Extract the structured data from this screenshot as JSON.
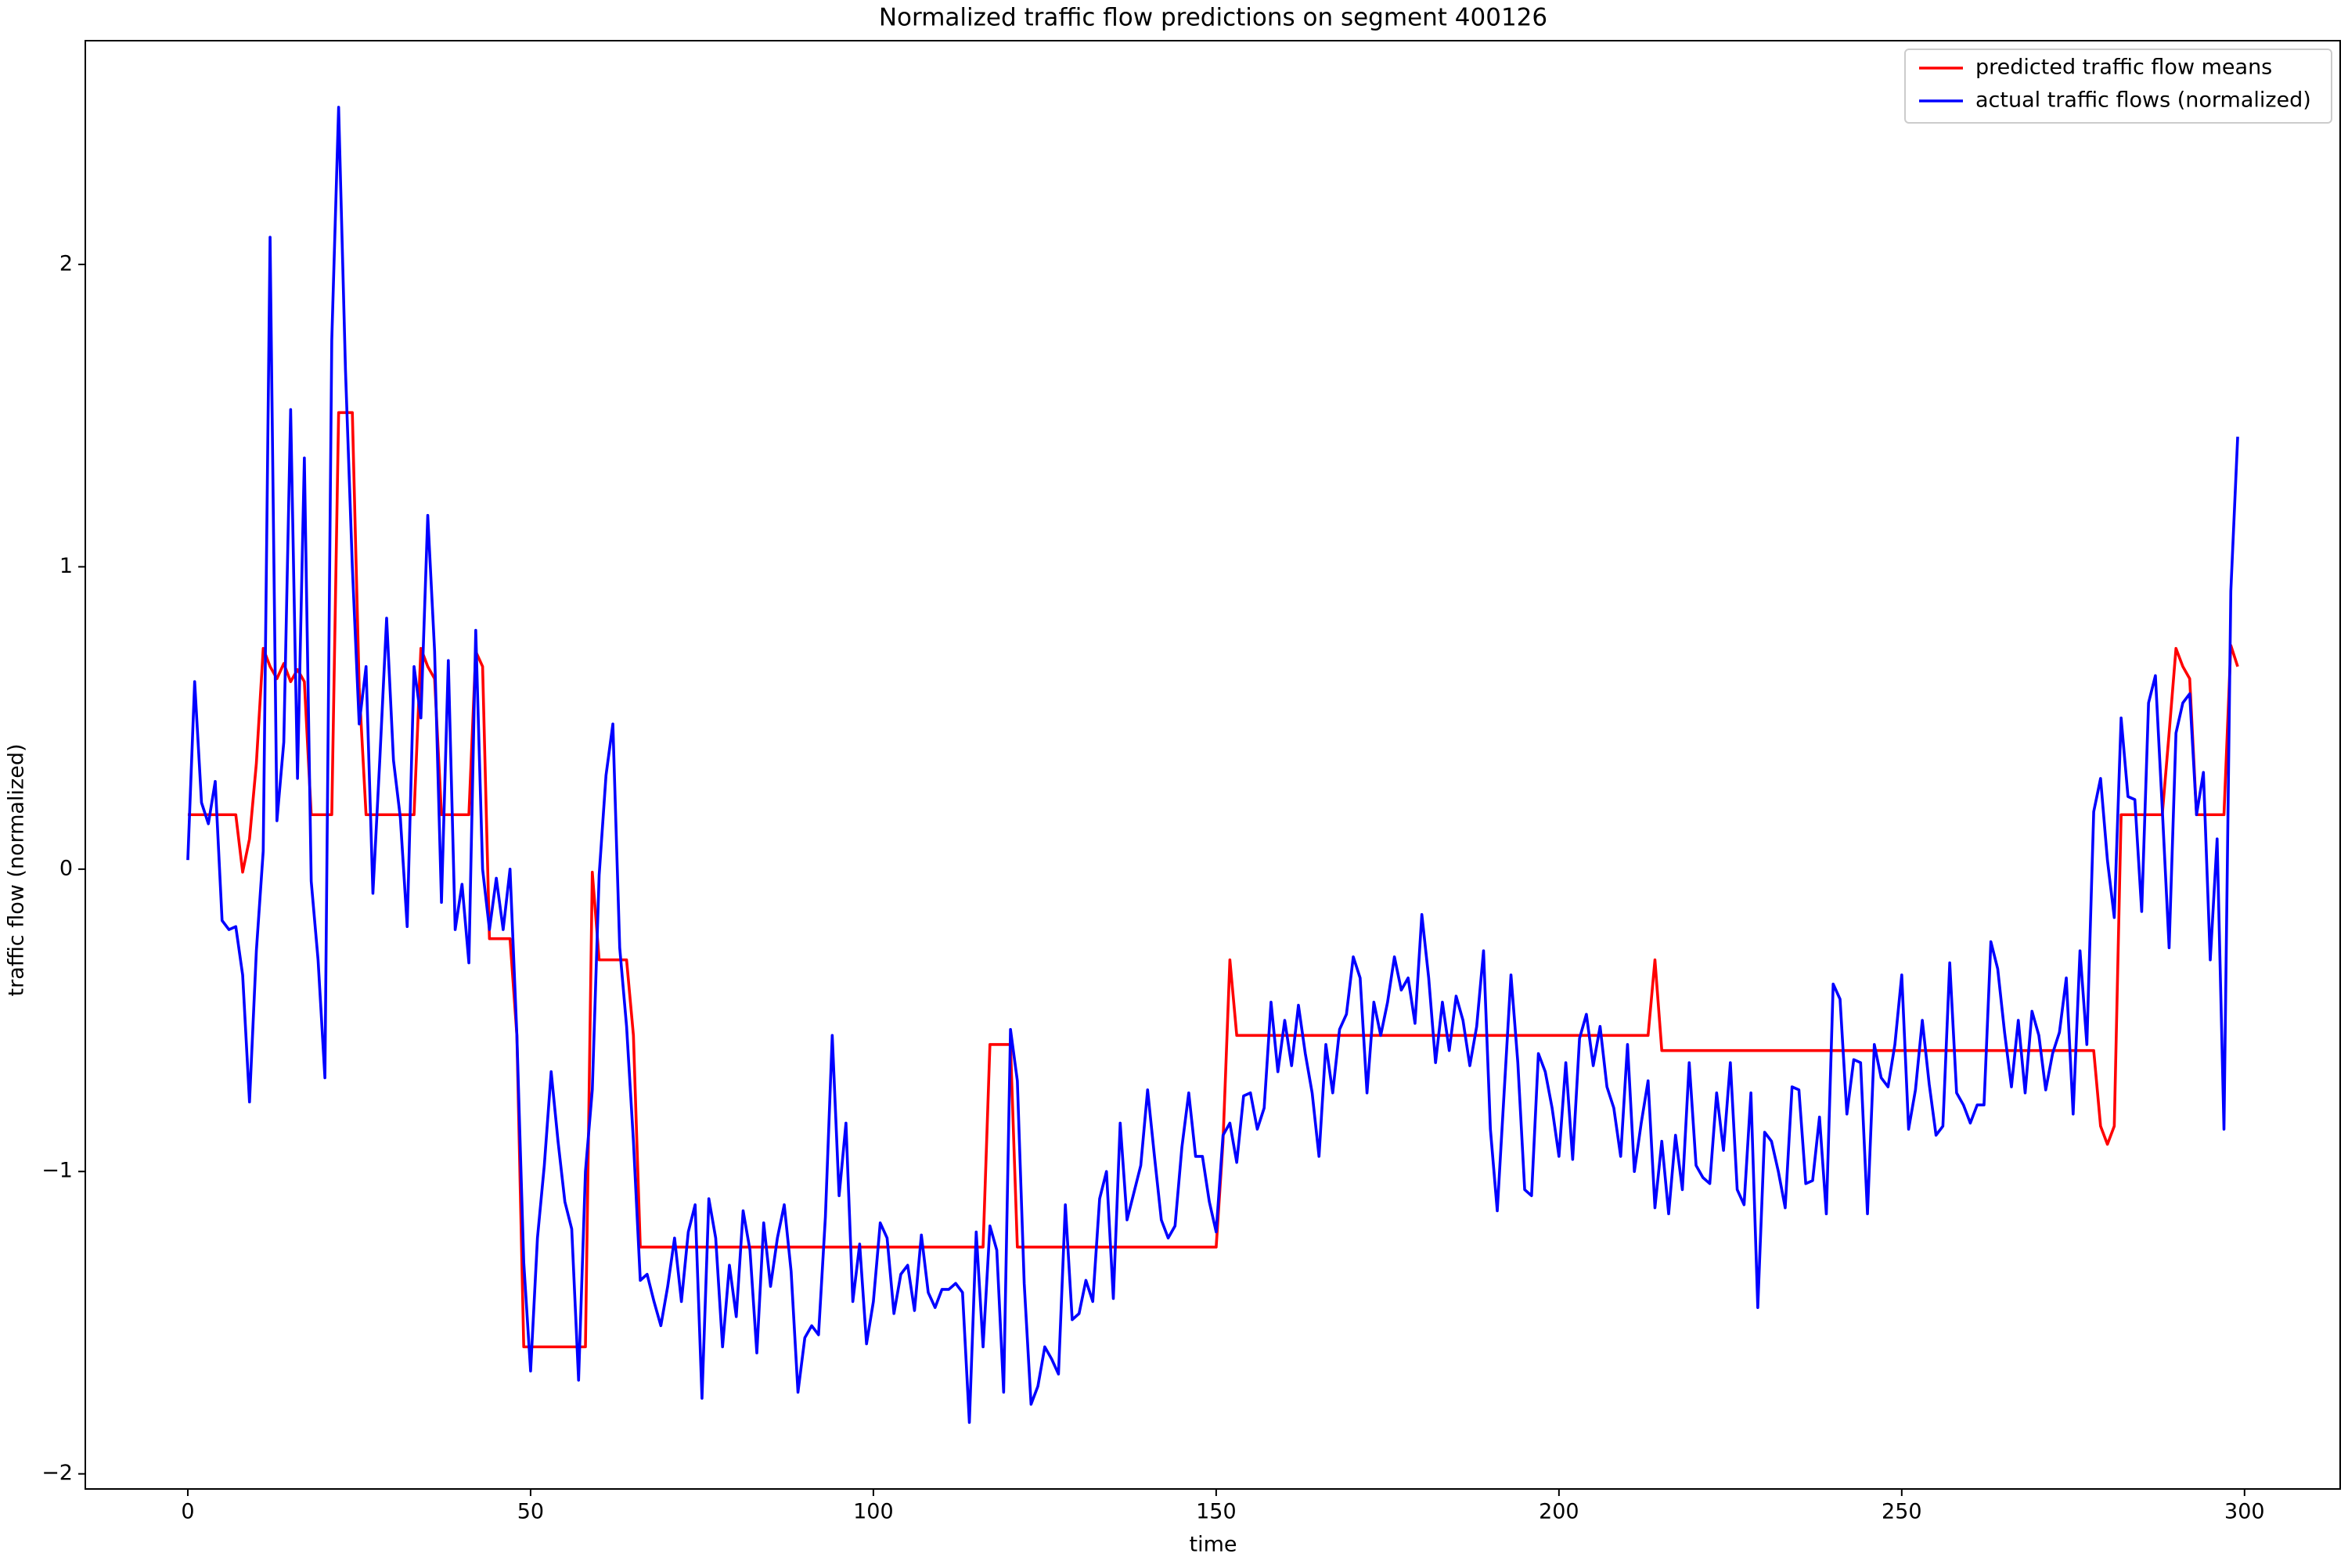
{
  "chart_data": {
    "type": "line",
    "title": "Normalized traffic flow predictions on segment 400126",
    "x_label": "time",
    "y_label": "traffic flow (normalized)",
    "x": [
      0,
      1,
      2,
      3,
      4,
      5,
      6,
      7,
      8,
      9,
      10,
      11,
      12,
      13,
      14,
      15,
      16,
      17,
      18,
      19,
      20,
      21,
      22,
      23,
      24,
      25,
      26,
      27,
      28,
      29,
      30,
      31,
      32,
      33,
      34,
      35,
      36,
      37,
      38,
      39,
      40,
      41,
      42,
      43,
      44,
      45,
      46,
      47,
      48,
      49,
      50,
      51,
      52,
      53,
      54,
      55,
      56,
      57,
      58,
      59,
      60,
      61,
      62,
      63,
      64,
      65,
      66,
      67,
      68,
      69,
      70,
      71,
      72,
      73,
      74,
      75,
      76,
      77,
      78,
      79,
      80,
      81,
      82,
      83,
      84,
      85,
      86,
      87,
      88,
      89,
      90,
      91,
      92,
      93,
      94,
      95,
      96,
      97,
      98,
      99,
      100,
      101,
      102,
      103,
      104,
      105,
      106,
      107,
      108,
      109,
      110,
      111,
      112,
      113,
      114,
      115,
      116,
      117,
      118,
      119,
      120,
      121,
      122,
      123,
      124,
      125,
      126,
      127,
      128,
      129,
      130,
      131,
      132,
      133,
      134,
      135,
      136,
      137,
      138,
      139,
      140,
      141,
      142,
      143,
      144,
      145,
      146,
      147,
      148,
      149,
      150,
      151,
      152,
      153,
      154,
      155,
      156,
      157,
      158,
      159,
      160,
      161,
      162,
      163,
      164,
      165,
      166,
      167,
      168,
      169,
      170,
      171,
      172,
      173,
      174,
      175,
      176,
      177,
      178,
      179,
      180,
      181,
      182,
      183,
      184,
      185,
      186,
      187,
      188,
      189,
      190,
      191,
      192,
      193,
      194,
      195,
      196,
      197,
      198,
      199,
      200,
      201,
      202,
      203,
      204,
      205,
      206,
      207,
      208,
      209,
      210,
      211,
      212,
      213,
      214,
      215,
      216,
      217,
      218,
      219,
      220,
      221,
      222,
      223,
      224,
      225,
      226,
      227,
      228,
      229,
      230,
      231,
      232,
      233,
      234,
      235,
      236,
      237,
      238,
      239,
      240,
      241,
      242,
      243,
      244,
      245,
      246,
      247,
      248,
      249,
      250,
      251,
      252,
      253,
      254,
      255,
      256,
      257,
      258,
      259,
      260,
      261,
      262,
      263,
      264,
      265,
      266,
      267,
      268,
      269,
      270,
      271,
      272,
      273,
      274,
      275,
      276,
      277,
      278,
      279,
      280,
      281,
      282,
      283,
      284,
      285,
      286,
      287,
      288,
      289,
      290,
      291,
      292,
      293,
      294,
      295,
      296,
      297,
      298,
      299
    ],
    "series": [
      {
        "name": "predicted traffic flow means",
        "color": "#ff0000",
        "values": [
          0.18,
          0.18,
          0.18,
          0.18,
          0.18,
          0.18,
          0.18,
          0.18,
          -0.01,
          0.1,
          0.35,
          0.73,
          0.67,
          0.63,
          0.68,
          0.62,
          0.66,
          0.62,
          0.18,
          0.18,
          0.18,
          0.18,
          1.51,
          1.51,
          1.51,
          0.6,
          0.18,
          0.18,
          0.18,
          0.18,
          0.18,
          0.18,
          0.18,
          0.18,
          0.73,
          0.67,
          0.63,
          0.18,
          0.18,
          0.18,
          0.18,
          0.18,
          0.72,
          0.67,
          -0.23,
          -0.23,
          -0.23,
          -0.23,
          -0.55,
          -1.58,
          -1.58,
          -1.58,
          -1.58,
          -1.58,
          -1.58,
          -1.58,
          -1.58,
          -1.58,
          -1.58,
          -0.01,
          -0.3,
          -0.3,
          -0.3,
          -0.3,
          -0.3,
          -0.55,
          -1.25,
          -1.25,
          -1.25,
          -1.25,
          -1.25,
          -1.25,
          -1.25,
          -1.25,
          -1.25,
          -1.25,
          -1.25,
          -1.25,
          -1.25,
          -1.25,
          -1.25,
          -1.25,
          -1.25,
          -1.25,
          -1.25,
          -1.25,
          -1.25,
          -1.25,
          -1.25,
          -1.25,
          -1.25,
          -1.25,
          -1.25,
          -1.25,
          -1.25,
          -1.25,
          -1.25,
          -1.25,
          -1.25,
          -1.25,
          -1.25,
          -1.25,
          -1.25,
          -1.25,
          -1.25,
          -1.25,
          -1.25,
          -1.25,
          -1.25,
          -1.25,
          -1.25,
          -1.25,
          -1.25,
          -1.25,
          -1.25,
          -1.25,
          -1.25,
          -0.58,
          -0.58,
          -0.58,
          -0.58,
          -1.25,
          -1.25,
          -1.25,
          -1.25,
          -1.25,
          -1.25,
          -1.25,
          -1.25,
          -1.25,
          -1.25,
          -1.25,
          -1.25,
          -1.25,
          -1.25,
          -1.25,
          -1.25,
          -1.25,
          -1.25,
          -1.25,
          -1.25,
          -1.25,
          -1.25,
          -1.25,
          -1.25,
          -1.25,
          -1.25,
          -1.25,
          -1.25,
          -1.25,
          -1.25,
          -0.9,
          -0.3,
          -0.55,
          -0.55,
          -0.55,
          -0.55,
          -0.55,
          -0.55,
          -0.55,
          -0.55,
          -0.55,
          -0.55,
          -0.55,
          -0.55,
          -0.55,
          -0.55,
          -0.55,
          -0.55,
          -0.55,
          -0.55,
          -0.55,
          -0.55,
          -0.55,
          -0.55,
          -0.55,
          -0.55,
          -0.55,
          -0.55,
          -0.55,
          -0.55,
          -0.55,
          -0.55,
          -0.55,
          -0.55,
          -0.55,
          -0.55,
          -0.55,
          -0.55,
          -0.55,
          -0.55,
          -0.55,
          -0.55,
          -0.55,
          -0.55,
          -0.55,
          -0.55,
          -0.55,
          -0.55,
          -0.55,
          -0.55,
          -0.55,
          -0.55,
          -0.55,
          -0.55,
          -0.55,
          -0.55,
          -0.55,
          -0.55,
          -0.55,
          -0.55,
          -0.55,
          -0.55,
          -0.55,
          -0.3,
          -0.6,
          -0.6,
          -0.6,
          -0.6,
          -0.6,
          -0.6,
          -0.6,
          -0.6,
          -0.6,
          -0.6,
          -0.6,
          -0.6,
          -0.6,
          -0.6,
          -0.6,
          -0.6,
          -0.6,
          -0.6,
          -0.6,
          -0.6,
          -0.6,
          -0.6,
          -0.6,
          -0.6,
          -0.6,
          -0.6,
          -0.6,
          -0.6,
          -0.6,
          -0.6,
          -0.6,
          -0.6,
          -0.6,
          -0.6,
          -0.6,
          -0.6,
          -0.6,
          -0.6,
          -0.6,
          -0.6,
          -0.6,
          -0.6,
          -0.6,
          -0.6,
          -0.6,
          -0.6,
          -0.6,
          -0.6,
          -0.6,
          -0.6,
          -0.6,
          -0.6,
          -0.6,
          -0.6,
          -0.6,
          -0.6,
          -0.6,
          -0.6,
          -0.6,
          -0.6,
          -0.6,
          -0.6,
          -0.6,
          -0.6,
          -0.85,
          -0.91,
          -0.85,
          0.18,
          0.18,
          0.18,
          0.18,
          0.18,
          0.18,
          0.18,
          0.45,
          0.73,
          0.67,
          0.63,
          0.18,
          0.18,
          0.18,
          0.18,
          0.18,
          0.74,
          0.67
        ]
      },
      {
        "name": "actual traffic flows (normalized)",
        "color": "#0000ff",
        "values": [
          0.03,
          0.62,
          0.22,
          0.15,
          0.29,
          -0.17,
          -0.2,
          -0.19,
          -0.35,
          -0.77,
          -0.27,
          0.06,
          2.09,
          0.16,
          0.42,
          1.52,
          0.3,
          1.36,
          -0.04,
          -0.3,
          -0.69,
          1.75,
          2.52,
          1.65,
          1.0,
          0.48,
          0.67,
          -0.08,
          0.36,
          0.83,
          0.36,
          0.17,
          -0.19,
          0.67,
          0.5,
          1.17,
          0.72,
          -0.11,
          0.69,
          -0.2,
          -0.05,
          -0.31,
          0.79,
          0.0,
          -0.2,
          -0.03,
          -0.2,
          0.0,
          -0.55,
          -1.3,
          -1.66,
          -1.22,
          -0.98,
          -0.67,
          -0.9,
          -1.1,
          -1.19,
          -1.69,
          -1.0,
          -0.73,
          -0.02,
          0.31,
          0.48,
          -0.26,
          -0.52,
          -0.9,
          -1.36,
          -1.34,
          -1.43,
          -1.51,
          -1.38,
          -1.22,
          -1.43,
          -1.2,
          -1.11,
          -1.75,
          -1.09,
          -1.22,
          -1.58,
          -1.31,
          -1.48,
          -1.13,
          -1.26,
          -1.6,
          -1.17,
          -1.38,
          -1.22,
          -1.11,
          -1.33,
          -1.73,
          -1.55,
          -1.51,
          -1.54,
          -1.15,
          -0.55,
          -1.08,
          -0.84,
          -1.43,
          -1.24,
          -1.57,
          -1.43,
          -1.17,
          -1.22,
          -1.47,
          -1.34,
          -1.31,
          -1.46,
          -1.21,
          -1.4,
          -1.45,
          -1.39,
          -1.39,
          -1.37,
          -1.4,
          -1.83,
          -1.2,
          -1.58,
          -1.18,
          -1.26,
          -1.73,
          -0.53,
          -0.7,
          -1.37,
          -1.77,
          -1.71,
          -1.58,
          -1.62,
          -1.67,
          -1.11,
          -1.49,
          -1.47,
          -1.36,
          -1.43,
          -1.09,
          -1.0,
          -1.42,
          -0.84,
          -1.16,
          -1.07,
          -0.98,
          -0.73,
          -0.95,
          -1.16,
          -1.22,
          -1.18,
          -0.92,
          -0.74,
          -0.95,
          -0.95,
          -1.1,
          -1.2,
          -0.88,
          -0.84,
          -0.97,
          -0.75,
          -0.74,
          -0.86,
          -0.79,
          -0.44,
          -0.67,
          -0.5,
          -0.65,
          -0.45,
          -0.61,
          -0.74,
          -0.95,
          -0.58,
          -0.74,
          -0.53,
          -0.48,
          -0.29,
          -0.36,
          -0.74,
          -0.44,
          -0.55,
          -0.44,
          -0.29,
          -0.4,
          -0.36,
          -0.51,
          -0.15,
          -0.36,
          -0.64,
          -0.44,
          -0.6,
          -0.42,
          -0.5,
          -0.65,
          -0.52,
          -0.27,
          -0.86,
          -1.13,
          -0.74,
          -0.35,
          -0.64,
          -1.06,
          -1.08,
          -0.61,
          -0.67,
          -0.79,
          -0.95,
          -0.64,
          -0.96,
          -0.56,
          -0.48,
          -0.65,
          -0.52,
          -0.72,
          -0.79,
          -0.95,
          -0.58,
          -1.0,
          -0.84,
          -0.7,
          -1.12,
          -0.9,
          -1.14,
          -0.88,
          -1.06,
          -0.64,
          -0.98,
          -1.02,
          -1.04,
          -0.74,
          -0.93,
          -0.64,
          -1.06,
          -1.11,
          -0.74,
          -1.45,
          -0.87,
          -0.9,
          -1.0,
          -1.12,
          -0.72,
          -0.73,
          -1.04,
          -1.03,
          -0.82,
          -1.14,
          -0.38,
          -0.43,
          -0.81,
          -0.63,
          -0.64,
          -1.14,
          -0.58,
          -0.69,
          -0.72,
          -0.58,
          -0.35,
          -0.86,
          -0.73,
          -0.5,
          -0.71,
          -0.88,
          -0.85,
          -0.31,
          -0.74,
          -0.78,
          -0.84,
          -0.78,
          -0.78,
          -0.24,
          -0.33,
          -0.54,
          -0.72,
          -0.5,
          -0.74,
          -0.47,
          -0.55,
          -0.73,
          -0.61,
          -0.54,
          -0.36,
          -0.81,
          -0.27,
          -0.58,
          0.19,
          0.3,
          0.03,
          -0.16,
          0.5,
          0.24,
          0.23,
          -0.14,
          0.55,
          0.64,
          0.2,
          -0.26,
          0.45,
          0.55,
          0.58,
          0.18,
          0.32,
          -0.3,
          0.1,
          -0.86,
          0.92,
          1.43
        ]
      }
    ],
    "xlim": [
      -14.95,
      313.95
    ],
    "xticks": [
      0,
      50,
      100,
      150,
      200,
      250,
      300
    ],
    "ylim": [
      -2.05,
      2.74
    ],
    "yticks": [
      {
        "value": -2,
        "label": "−2"
      },
      {
        "value": -1,
        "label": "−1"
      },
      0,
      1,
      2
    ],
    "legend": "upper right",
    "grid": false
  }
}
